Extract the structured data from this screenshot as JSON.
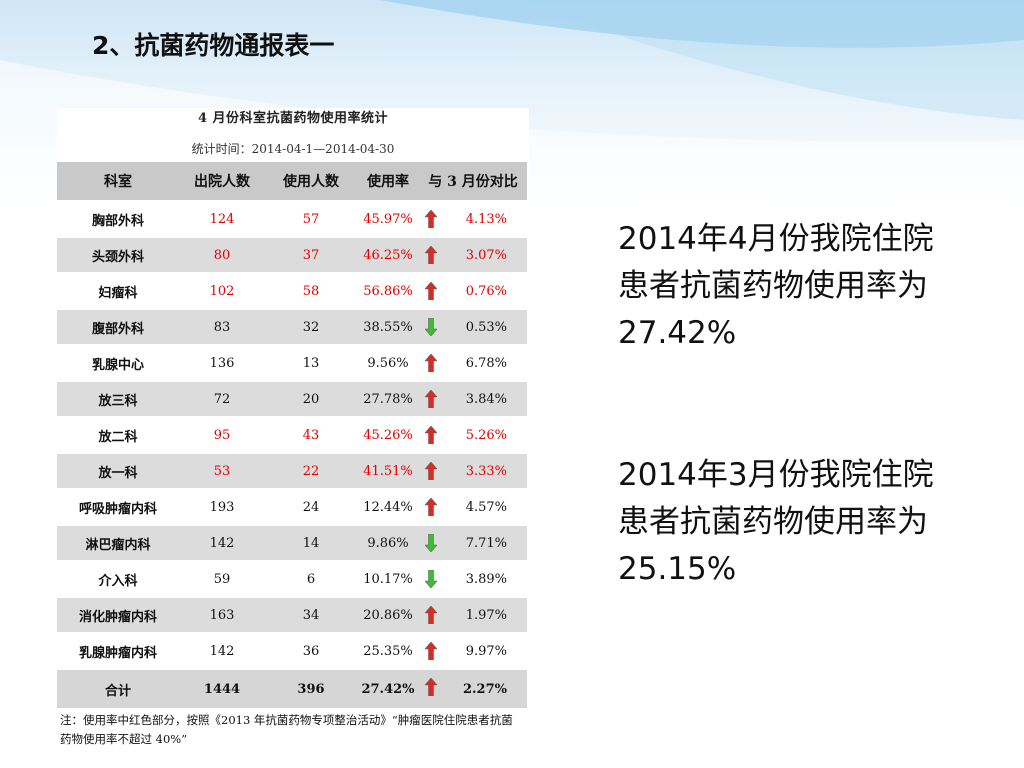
{
  "title": "2、抗菌药物通报表一",
  "table": {
    "title": "4 月份科室抗菌药物使用率统计",
    "period": "统计时间：2014-04-1—2014-04-30",
    "headers": [
      "科室",
      "出院人数",
      "使用人数",
      "使用率",
      "与 3 月份对比"
    ],
    "rows": [
      {
        "dept": "胸部外科",
        "discharged": "124",
        "used": "57",
        "rate": "45.97%",
        "trend": "up",
        "compare": "4.13%",
        "highlight": true
      },
      {
        "dept": "头颈外科",
        "discharged": "80",
        "used": "37",
        "rate": "46.25%",
        "trend": "up",
        "compare": "3.07%",
        "highlight": true
      },
      {
        "dept": "妇瘤科",
        "discharged": "102",
        "used": "58",
        "rate": "56.86%",
        "trend": "up",
        "compare": "0.76%",
        "highlight": true
      },
      {
        "dept": "腹部外科",
        "discharged": "83",
        "used": "32",
        "rate": "38.55%",
        "trend": "down",
        "compare": "0.53%",
        "highlight": false
      },
      {
        "dept": "乳腺中心",
        "discharged": "136",
        "used": "13",
        "rate": "9.56%",
        "trend": "up",
        "compare": "6.78%",
        "highlight": false
      },
      {
        "dept": "放三科",
        "discharged": "72",
        "used": "20",
        "rate": "27.78%",
        "trend": "up",
        "compare": "3.84%",
        "highlight": false
      },
      {
        "dept": "放二科",
        "discharged": "95",
        "used": "43",
        "rate": "45.26%",
        "trend": "up",
        "compare": "5.26%",
        "highlight": true
      },
      {
        "dept": "放一科",
        "discharged": "53",
        "used": "22",
        "rate": "41.51%",
        "trend": "up",
        "compare": "3.33%",
        "highlight": true
      },
      {
        "dept": "呼吸肿瘤内科",
        "discharged": "193",
        "used": "24",
        "rate": "12.44%",
        "trend": "up",
        "compare": "4.57%",
        "highlight": false
      },
      {
        "dept": "淋巴瘤内科",
        "discharged": "142",
        "used": "14",
        "rate": "9.86%",
        "trend": "down",
        "compare": "7.71%",
        "highlight": false
      },
      {
        "dept": "介入科",
        "discharged": "59",
        "used": "6",
        "rate": "10.17%",
        "trend": "down",
        "compare": "3.89%",
        "highlight": false
      },
      {
        "dept": "消化肿瘤内科",
        "discharged": "163",
        "used": "34",
        "rate": "20.86%",
        "trend": "up",
        "compare": "1.97%",
        "highlight": false
      },
      {
        "dept": "乳腺肿瘤内科",
        "discharged": "142",
        "used": "36",
        "rate": "25.35%",
        "trend": "up",
        "compare": "9.97%",
        "highlight": false
      }
    ],
    "total": {
      "dept": "合计",
      "discharged": "1444",
      "used": "396",
      "rate": "27.42%",
      "trend": "up",
      "compare": "2.27%"
    }
  },
  "note": "注：使用率中红色部分，按照《2013 年抗菌药物专项整治活动》“肿瘤医院住院患者抗菌药物使用率不超过 40%”",
  "side_text": [
    "2014年4月份我院住院患者抗菌药物使用率为27.42%",
    "2014年3月份我院住院患者抗菌药物使用率为25.15%"
  ],
  "colors": {
    "highlight": "#e00000",
    "arrow_up": "#d92b1f",
    "arrow_down": "#3cbf2e",
    "header_bg": "#c9c9c9",
    "row_shade": "#dcdcdc"
  }
}
